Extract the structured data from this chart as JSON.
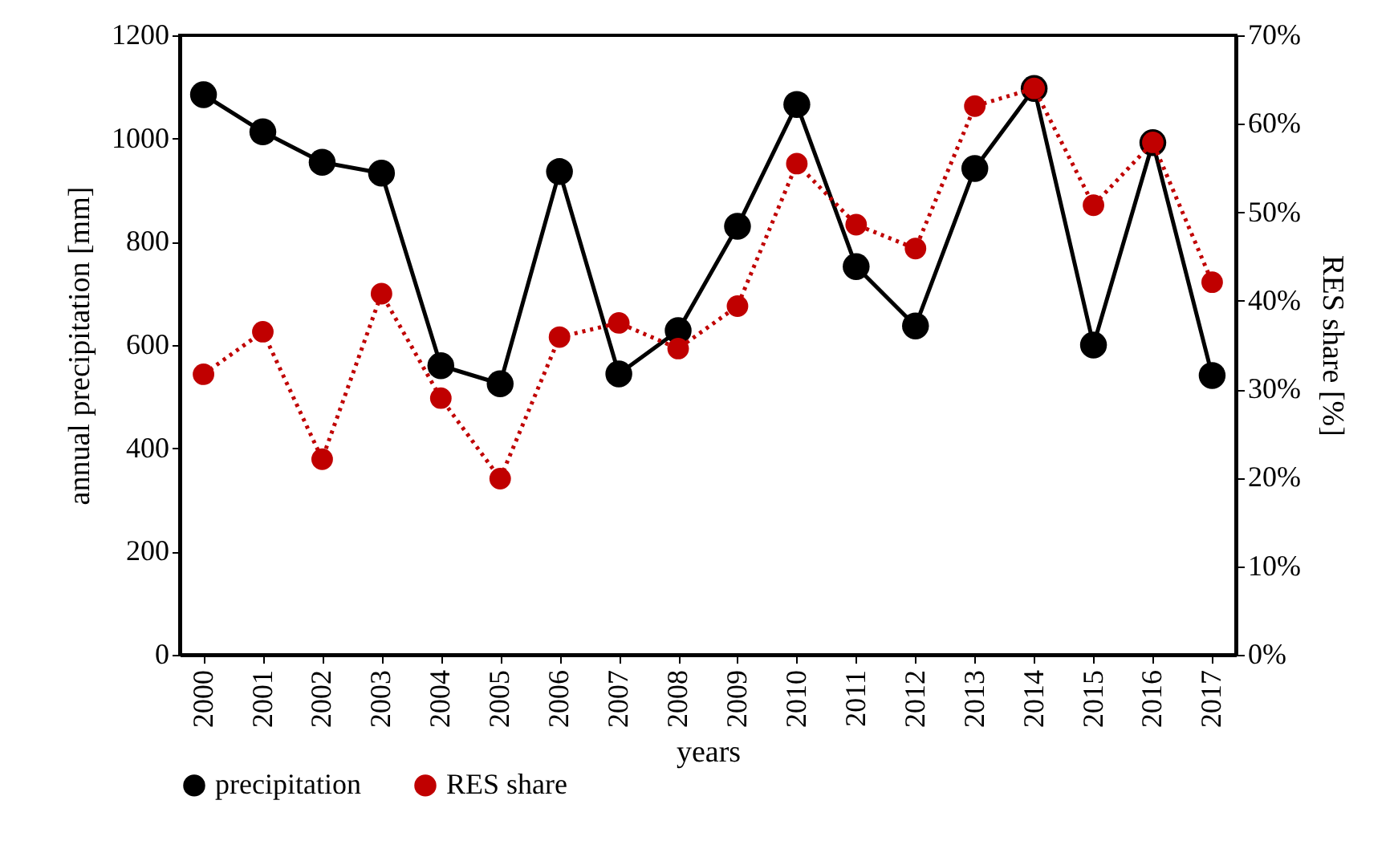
{
  "chart_data": {
    "type": "line",
    "xlabel": "years",
    "ylabel": "annual precipitation [mm]",
    "y2label": "RES share [%]",
    "categories": [
      "2000",
      "2001",
      "2002",
      "2003",
      "2004",
      "2005",
      "2006",
      "2007",
      "2008",
      "2009",
      "2010",
      "2011",
      "2012",
      "2013",
      "2014",
      "2015",
      "2016",
      "2017"
    ],
    "series": [
      {
        "name": "precipitation",
        "color": "#000000",
        "line_style": "solid",
        "values": [
          1085,
          1013,
          954,
          933,
          560,
          525,
          936,
          544,
          628,
          830,
          1066,
          752,
          637,
          942,
          1097,
          600,
          992,
          541
        ]
      },
      {
        "name": "RES share",
        "color": "#c00000",
        "line_style": "dotted",
        "axis": "y2",
        "values": [
          31.7,
          36.5,
          22.1,
          40.8,
          29.0,
          19.9,
          35.9,
          37.5,
          34.6,
          39.4,
          55.5,
          48.6,
          45.9,
          62.0,
          64.0,
          50.8,
          57.9,
          42.1
        ]
      }
    ],
    "ylim": [
      0,
      1200
    ],
    "yticks": [
      0,
      200,
      400,
      600,
      800,
      1000,
      1200
    ],
    "y2lim": [
      0,
      70
    ],
    "y2ticks": [
      {
        "value": 0,
        "label": "0%"
      },
      {
        "value": 10,
        "label": "10%"
      },
      {
        "value": 20,
        "label": "20%"
      },
      {
        "value": 30,
        "label": "30%"
      },
      {
        "value": 40,
        "label": "40%"
      },
      {
        "value": 50,
        "label": "50%"
      },
      {
        "value": 60,
        "label": "60%"
      },
      {
        "value": 70,
        "label": "70%"
      }
    ],
    "marker": "circle",
    "grid": false,
    "legend": "bottom"
  }
}
